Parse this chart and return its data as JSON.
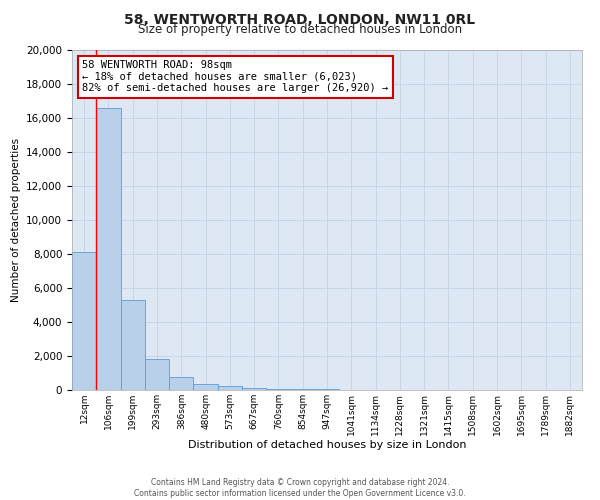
{
  "title": "58, WENTWORTH ROAD, LONDON, NW11 0RL",
  "subtitle": "Size of property relative to detached houses in London",
  "xlabel": "Distribution of detached houses by size in London",
  "ylabel": "Number of detached properties",
  "bin_labels": [
    "12sqm",
    "106sqm",
    "199sqm",
    "293sqm",
    "386sqm",
    "480sqm",
    "573sqm",
    "667sqm",
    "760sqm",
    "854sqm",
    "947sqm",
    "1041sqm",
    "1134sqm",
    "1228sqm",
    "1321sqm",
    "1415sqm",
    "1508sqm",
    "1602sqm",
    "1695sqm",
    "1789sqm",
    "1882sqm"
  ],
  "bin_values": [
    8100,
    16600,
    5300,
    1800,
    750,
    330,
    230,
    100,
    70,
    50,
    30,
    20,
    15,
    10,
    8,
    5,
    4,
    3,
    2,
    1,
    1
  ],
  "bar_color": "#b8d0ea",
  "bar_edge_color": "#5b9bd5",
  "red_line_bin_index": 1,
  "annotation_title": "58 WENTWORTH ROAD: 98sqm",
  "annotation_line1": "← 18% of detached houses are smaller (6,023)",
  "annotation_line2": "82% of semi-detached houses are larger (26,920) →",
  "annotation_box_color": "#ffffff",
  "annotation_box_edge": "#cc0000",
  "ylim": [
    0,
    20000
  ],
  "yticks": [
    0,
    2000,
    4000,
    6000,
    8000,
    10000,
    12000,
    14000,
    16000,
    18000,
    20000
  ],
  "grid_color": "#c8d4e8",
  "background_color": "#dde8f4",
  "footer_line1": "Contains HM Land Registry data © Crown copyright and database right 2024.",
  "footer_line2": "Contains public sector information licensed under the Open Government Licence v3.0."
}
